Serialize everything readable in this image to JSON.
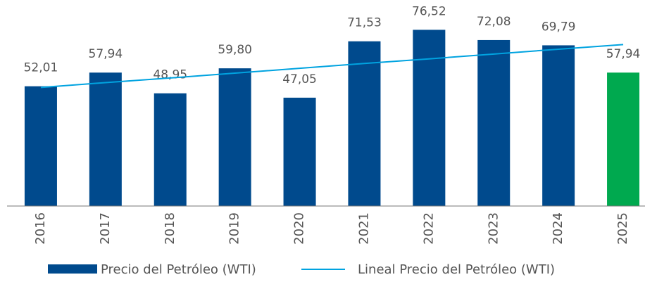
{
  "chart_data": {
    "type": "bar",
    "categories": [
      "2016",
      "2017",
      "2018",
      "2019",
      "2020",
      "2021",
      "2022",
      "2023",
      "2024",
      "2025"
    ],
    "series": [
      {
        "name": "Precio del Petróleo (WTI)",
        "type": "bar",
        "colors": [
          "#004a8d",
          "#004a8d",
          "#004a8d",
          "#004a8d",
          "#004a8d",
          "#004a8d",
          "#004a8d",
          "#004a8d",
          "#004a8d",
          "#00a94f"
        ],
        "color": "#004a8d",
        "values": [
          52.01,
          57.94,
          48.95,
          59.8,
          47.05,
          71.53,
          76.52,
          72.08,
          69.79,
          57.94
        ],
        "value_labels": [
          "52,01",
          "57,94",
          "48,95",
          "59,80",
          "47,05",
          "71,53",
          "76,52",
          "72,08",
          "69,79",
          "57,94"
        ]
      },
      {
        "name": "Lineal Precio del Petróleo (WTI)",
        "type": "line",
        "color": "#00a3e0",
        "values": [
          51.5,
          53.6,
          55.6,
          57.7,
          59.8,
          61.9,
          63.9,
          66.0,
          68.1,
          70.1
        ]
      }
    ],
    "ylim": [
      0,
      80
    ]
  }
}
